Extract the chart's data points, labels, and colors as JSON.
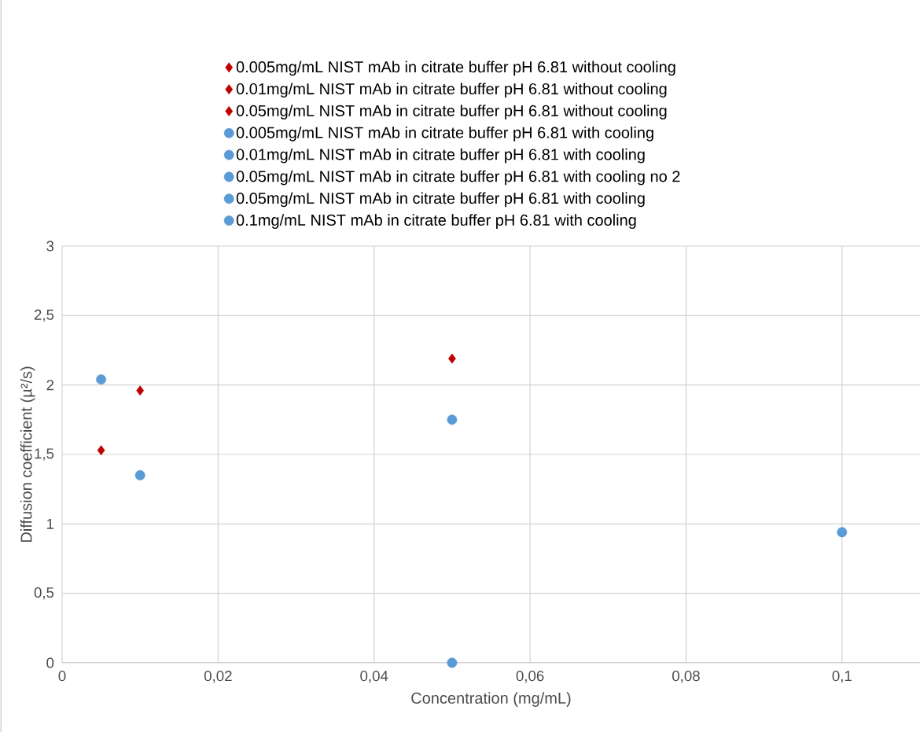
{
  "chart_data": {
    "type": "scatter",
    "xlabel": "Concentration (mg/mL)",
    "ylabel": "Diffusion coefficient (µ²/s)",
    "xlim": [
      0,
      0.11
    ],
    "ylim": [
      0,
      3
    ],
    "xticks": [
      0,
      {
        "value": 0.02,
        "label": "0,02"
      },
      {
        "value": 0.04,
        "label": "0,04"
      },
      {
        "value": 0.06,
        "label": "0,06"
      },
      {
        "value": 0.08,
        "label": "0,08"
      },
      {
        "value": 0.1,
        "label": "0,1"
      }
    ],
    "yticks": [
      0,
      {
        "value": 0.5,
        "label": "0,5"
      },
      1,
      {
        "value": 1.5,
        "label": "1,5"
      },
      2,
      {
        "value": 2.5,
        "label": "2,5"
      },
      3
    ],
    "grid": true,
    "legend": "top",
    "series": [
      {
        "name": "0.005mg/mL NIST mAb in citrate buffer pH 6.81 without cooling",
        "color": "#c00000",
        "marker": "diamond",
        "x": [
          0.005
        ],
        "values": [
          1.53
        ]
      },
      {
        "name": "0.01mg/mL NIST mAb in citrate buffer pH 6.81 without cooling",
        "color": "#c00000",
        "marker": "diamond",
        "x": [
          0.01
        ],
        "values": [
          1.96
        ]
      },
      {
        "name": "0.05mg/mL NIST mAb in citrate buffer pH 6.81 without cooling",
        "color": "#c00000",
        "marker": "diamond",
        "x": [
          0.05
        ],
        "values": [
          2.19
        ]
      },
      {
        "name": "0.005mg/mL NIST mAb in citrate buffer pH 6.81 with cooling",
        "color": "#5b9bd5",
        "marker": "circle",
        "x": [
          0.005
        ],
        "values": [
          2.04
        ]
      },
      {
        "name": "0.01mg/mL NIST mAb in citrate buffer pH 6.81 with cooling",
        "color": "#5b9bd5",
        "marker": "circle",
        "x": [
          0.01
        ],
        "values": [
          1.35
        ]
      },
      {
        "name": "0.05mg/mL NIST mAb in citrate buffer pH 6.81 with cooling no 2",
        "color": "#5b9bd5",
        "marker": "circle",
        "x": [
          0.05
        ],
        "values": [
          1.75
        ]
      },
      {
        "name": "0.05mg/mL NIST mAb in citrate buffer pH 6.81 with cooling",
        "color": "#5b9bd5",
        "marker": "circle",
        "x": [
          0.05
        ],
        "values": [
          0
        ]
      },
      {
        "name": "0.1mg/mL NIST mAb in citrate buffer pH 6.81 with cooling",
        "color": "#5b9bd5",
        "marker": "circle",
        "x": [
          0.1
        ],
        "values": [
          0.94
        ]
      }
    ]
  }
}
